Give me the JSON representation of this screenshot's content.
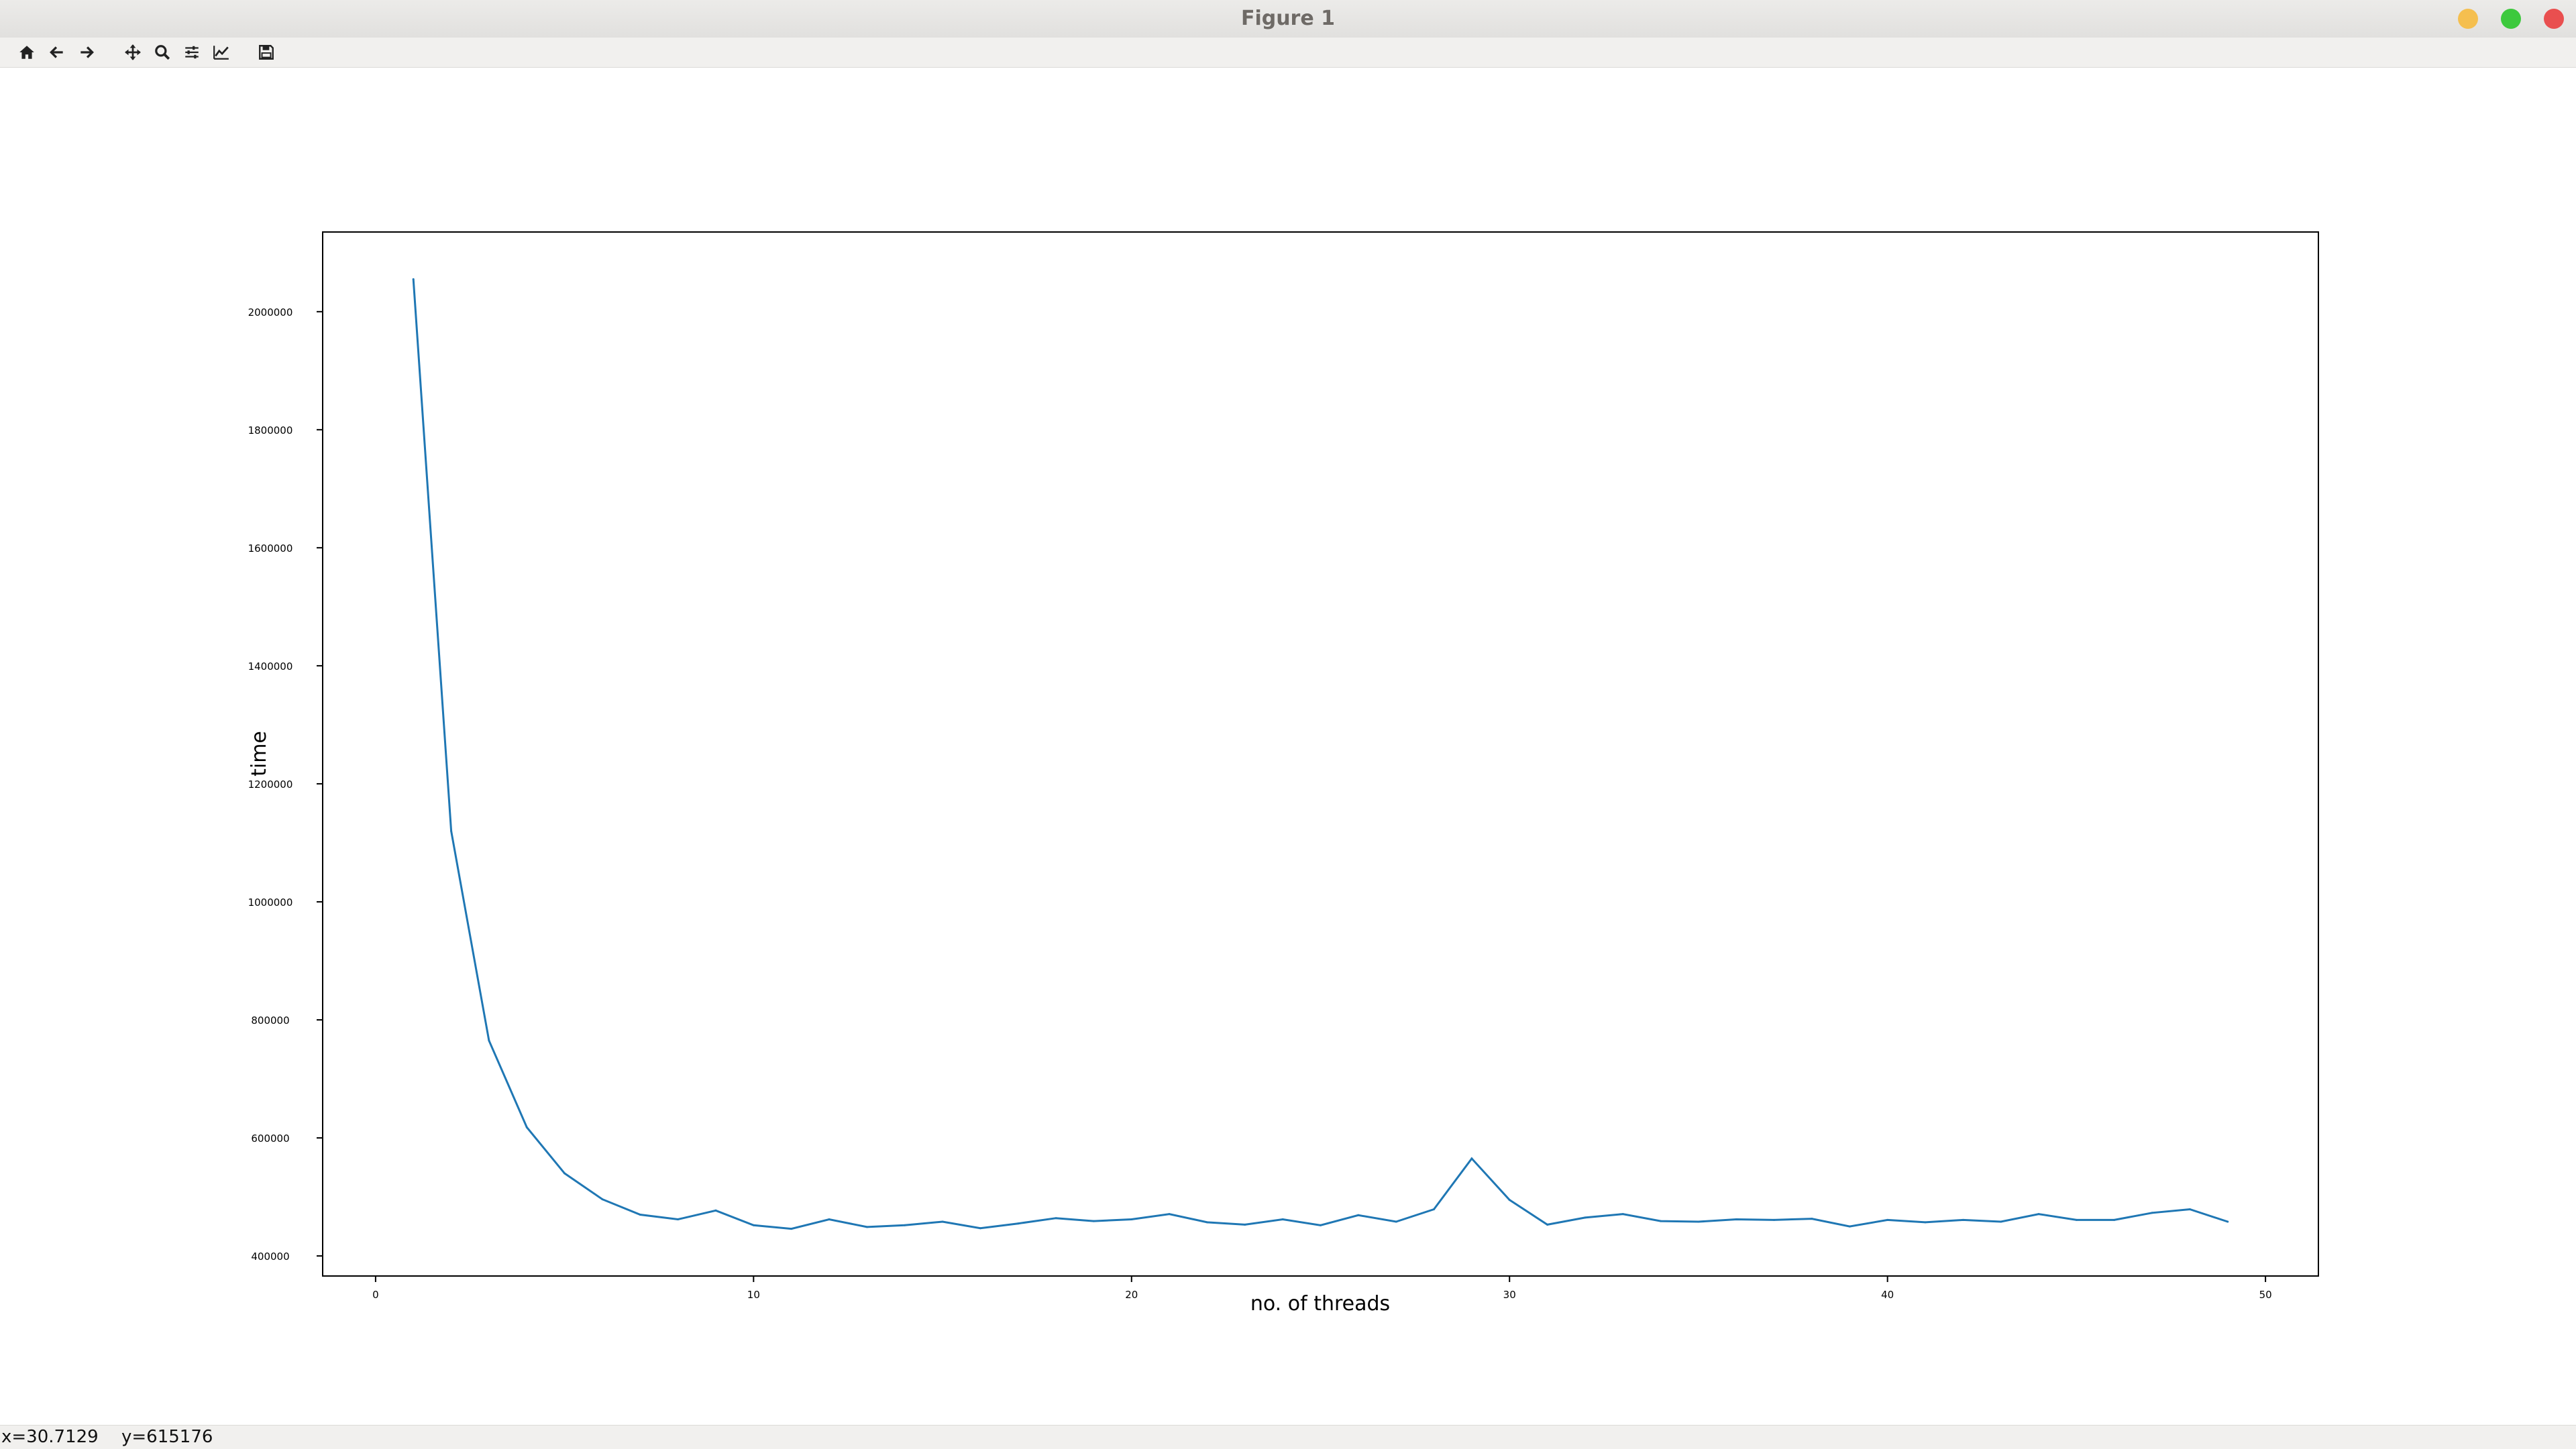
{
  "window": {
    "title": "Figure 1",
    "controls": [
      {
        "name": "minimize-button",
        "color": "#f5bf4f"
      },
      {
        "name": "maximize-button",
        "color": "#3dc93d"
      },
      {
        "name": "close-button",
        "color": "#e94f4f"
      }
    ]
  },
  "toolbar": {
    "buttons": [
      {
        "name": "home-button",
        "icon": "home-icon"
      },
      {
        "name": "back-button",
        "icon": "arrow-left-icon"
      },
      {
        "name": "forward-button",
        "icon": "arrow-right-icon"
      },
      {
        "name": "pan-button",
        "icon": "move-icon"
      },
      {
        "name": "zoom-button",
        "icon": "zoom-icon"
      },
      {
        "name": "subplots-button",
        "icon": "sliders-icon"
      },
      {
        "name": "edit-axis-button",
        "icon": "line-chart-icon"
      },
      {
        "name": "save-button",
        "icon": "save-icon"
      }
    ]
  },
  "status": {
    "x_readout": "x=30.7129",
    "y_readout": "y=615176"
  },
  "chart_data": {
    "type": "line",
    "title": "",
    "xlabel": "no. of threads",
    "ylabel": "time",
    "xlim": [
      -1.4,
      51.4
    ],
    "ylim": [
      366000,
      2135000
    ],
    "xticks": [
      0,
      10,
      20,
      30,
      40,
      50
    ],
    "yticks": [
      400000,
      600000,
      800000,
      1000000,
      1200000,
      1400000,
      1600000,
      1800000,
      2000000
    ],
    "grid": false,
    "line_color": "#1f77b4",
    "series": [
      {
        "x": [
          1,
          2,
          3,
          4,
          5,
          6,
          7,
          8,
          9,
          10,
          11,
          12,
          13,
          14,
          15,
          16,
          17,
          18,
          19,
          20,
          21,
          22,
          23,
          24,
          25,
          26,
          27,
          28,
          29,
          30,
          31,
          32,
          33,
          34,
          35,
          36,
          37,
          38,
          39,
          40,
          41,
          42,
          43,
          44,
          45,
          46,
          47,
          48,
          49
        ],
        "values": [
          2055000,
          1120000,
          765000,
          618000,
          540000,
          496000,
          470000,
          462000,
          477000,
          452000,
          446000,
          462000,
          449000,
          452000,
          458000,
          447000,
          455000,
          464000,
          459000,
          462000,
          471000,
          457000,
          453000,
          462000,
          452000,
          469000,
          458000,
          479000,
          565000,
          495000,
          453000,
          465000,
          471000,
          459000,
          458000,
          462000,
          461000,
          463000,
          450000,
          461000,
          457000,
          461000,
          458000,
          471000,
          461000,
          461000,
          473000,
          479000,
          458000
        ]
      }
    ]
  }
}
